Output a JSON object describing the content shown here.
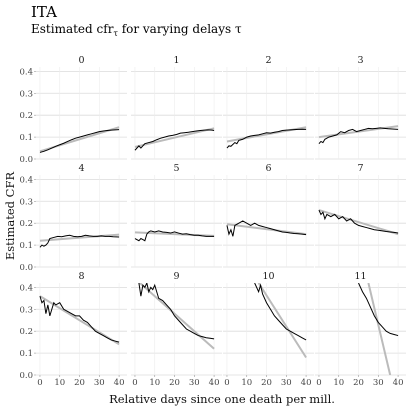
{
  "figure": {
    "title": "ITA",
    "subtitle": "Estimated cfr",
    "subtitle_sub": "τ",
    "subtitle_rest": " for varying delays τ"
  },
  "chart_data": {
    "type": "line",
    "xlabel": "Relative days since one death per mill.",
    "ylabel": "Estimated CFR",
    "xlim": [
      -2,
      44
    ],
    "ylim": [
      0,
      0.42
    ],
    "xticks": [
      0,
      10,
      20,
      30,
      40
    ],
    "yticks": [
      0.0,
      0.1,
      0.2,
      0.3,
      0.4
    ],
    "ytick_labels": [
      "0.0",
      "0.1",
      "0.2",
      "0.3",
      "0.4"
    ],
    "grid": true,
    "facet_layout": {
      "ncol": 4,
      "nrow": 3
    },
    "series_styles": {
      "estimate": "#000000",
      "fit": "#bbbbbb"
    },
    "panels": [
      {
        "label": "0",
        "estimate": {
          "x": [
            0,
            2,
            4,
            6,
            8,
            10,
            12,
            14,
            16,
            18,
            20,
            22,
            24,
            26,
            28,
            30,
            32,
            34,
            36,
            38,
            40
          ],
          "y": [
            0.03,
            0.035,
            0.042,
            0.05,
            0.058,
            0.065,
            0.072,
            0.08,
            0.088,
            0.095,
            0.1,
            0.105,
            0.11,
            0.115,
            0.12,
            0.125,
            0.128,
            0.13,
            0.132,
            0.133,
            0.134
          ]
        },
        "fit": {
          "x": [
            0,
            40
          ],
          "y": [
            0.035,
            0.145
          ]
        }
      },
      {
        "label": "1",
        "estimate": {
          "x": [
            0,
            2,
            3,
            5,
            7,
            9,
            11,
            13,
            15,
            17,
            19,
            21,
            23,
            25,
            27,
            29,
            31,
            33,
            35,
            37,
            39,
            40
          ],
          "y": [
            0.04,
            0.06,
            0.05,
            0.07,
            0.075,
            0.08,
            0.088,
            0.095,
            0.1,
            0.105,
            0.108,
            0.112,
            0.118,
            0.12,
            0.122,
            0.125,
            0.128,
            0.13,
            0.132,
            0.133,
            0.132,
            0.13
          ]
        },
        "fit": {
          "x": [
            0,
            40
          ],
          "y": [
            0.055,
            0.14
          ]
        }
      },
      {
        "label": "2",
        "estimate": {
          "x": [
            0,
            1,
            2,
            4,
            5,
            6,
            8,
            10,
            12,
            14,
            16,
            18,
            20,
            22,
            24,
            26,
            28,
            30,
            32,
            34,
            36,
            38,
            40
          ],
          "y": [
            0.05,
            0.06,
            0.058,
            0.075,
            0.07,
            0.085,
            0.09,
            0.1,
            0.105,
            0.108,
            0.11,
            0.115,
            0.12,
            0.118,
            0.122,
            0.125,
            0.13,
            0.132,
            0.133,
            0.134,
            0.135,
            0.136,
            0.135
          ]
        },
        "fit": {
          "x": [
            0,
            40
          ],
          "y": [
            0.08,
            0.145
          ]
        }
      },
      {
        "label": "3",
        "estimate": {
          "x": [
            0,
            1,
            2,
            3,
            5,
            7,
            9,
            11,
            13,
            15,
            17,
            19,
            21,
            23,
            25,
            27,
            29,
            31,
            33,
            35,
            37,
            40
          ],
          "y": [
            0.07,
            0.08,
            0.075,
            0.09,
            0.1,
            0.105,
            0.11,
            0.125,
            0.12,
            0.13,
            0.135,
            0.125,
            0.13,
            0.135,
            0.14,
            0.138,
            0.14,
            0.142,
            0.14,
            0.138,
            0.137,
            0.135
          ]
        },
        "fit": {
          "x": [
            0,
            40
          ],
          "y": [
            0.1,
            0.15
          ]
        }
      },
      {
        "label": "4",
        "estimate": {
          "x": [
            0,
            1,
            2,
            3,
            4,
            5,
            7,
            9,
            11,
            13,
            15,
            17,
            19,
            21,
            23,
            25,
            27,
            29,
            31,
            33,
            35,
            37,
            40
          ],
          "y": [
            0.09,
            0.1,
            0.095,
            0.1,
            0.11,
            0.13,
            0.135,
            0.14,
            0.138,
            0.142,
            0.145,
            0.14,
            0.138,
            0.14,
            0.145,
            0.142,
            0.14,
            0.14,
            0.142,
            0.14,
            0.14,
            0.138,
            0.137
          ]
        },
        "fit": {
          "x": [
            0,
            40
          ],
          "y": [
            0.12,
            0.148
          ]
        }
      },
      {
        "label": "5",
        "estimate": {
          "x": [
            0,
            2,
            3,
            4,
            5,
            6,
            7,
            8,
            10,
            12,
            14,
            16,
            18,
            20,
            22,
            24,
            26,
            28,
            30,
            32,
            34,
            36,
            38,
            40
          ],
          "y": [
            0.13,
            0.12,
            0.13,
            0.125,
            0.12,
            0.15,
            0.16,
            0.165,
            0.16,
            0.165,
            0.16,
            0.158,
            0.155,
            0.16,
            0.155,
            0.15,
            0.152,
            0.148,
            0.145,
            0.145,
            0.142,
            0.14,
            0.14,
            0.14
          ]
        },
        "fit": {
          "x": [
            0,
            40
          ],
          "y": [
            0.158,
            0.142
          ]
        }
      },
      {
        "label": "6",
        "estimate": {
          "x": [
            0,
            1,
            2,
            3,
            4,
            6,
            8,
            10,
            12,
            14,
            16,
            18,
            20,
            22,
            24,
            26,
            28,
            30,
            32,
            34,
            36,
            38,
            40
          ],
          "y": [
            0.19,
            0.15,
            0.17,
            0.14,
            0.19,
            0.2,
            0.21,
            0.2,
            0.19,
            0.2,
            0.19,
            0.185,
            0.18,
            0.175,
            0.17,
            0.165,
            0.16,
            0.158,
            0.155,
            0.153,
            0.152,
            0.15,
            0.148
          ]
        },
        "fit": {
          "x": [
            0,
            40
          ],
          "y": [
            0.195,
            0.15
          ]
        }
      },
      {
        "label": "7",
        "estimate": {
          "x": [
            0,
            1,
            2,
            3,
            4,
            6,
            8,
            10,
            12,
            14,
            16,
            18,
            20,
            22,
            24,
            26,
            28,
            30,
            32,
            34,
            36,
            38,
            40
          ],
          "y": [
            0.26,
            0.24,
            0.25,
            0.22,
            0.24,
            0.23,
            0.24,
            0.22,
            0.23,
            0.21,
            0.22,
            0.2,
            0.19,
            0.185,
            0.18,
            0.175,
            0.17,
            0.168,
            0.165,
            0.162,
            0.16,
            0.158,
            0.155
          ]
        },
        "fit": {
          "x": [
            0,
            40
          ],
          "y": [
            0.26,
            0.15
          ]
        }
      },
      {
        "label": "8",
        "estimate": {
          "x": [
            0,
            1,
            2,
            3,
            4,
            5,
            6,
            7,
            8,
            10,
            12,
            14,
            16,
            18,
            20,
            22,
            24,
            26,
            28,
            30,
            32,
            34,
            36,
            38,
            40
          ],
          "y": [
            0.36,
            0.33,
            0.34,
            0.28,
            0.32,
            0.27,
            0.3,
            0.33,
            0.32,
            0.33,
            0.3,
            0.29,
            0.28,
            0.27,
            0.27,
            0.25,
            0.24,
            0.22,
            0.2,
            0.19,
            0.18,
            0.17,
            0.16,
            0.155,
            0.15
          ]
        },
        "fit": {
          "x": [
            0,
            40
          ],
          "y": [
            0.36,
            0.14
          ]
        }
      },
      {
        "label": "9",
        "estimate": {
          "x": [
            2,
            3,
            4,
            5,
            6,
            7,
            8,
            9,
            10,
            12,
            14,
            16,
            18,
            20,
            22,
            24,
            26,
            28,
            30,
            32,
            34,
            36,
            38,
            40
          ],
          "y": [
            0.42,
            0.36,
            0.41,
            0.4,
            0.42,
            0.38,
            0.4,
            0.39,
            0.41,
            0.35,
            0.34,
            0.32,
            0.3,
            0.27,
            0.25,
            0.23,
            0.21,
            0.2,
            0.19,
            0.18,
            0.175,
            0.17,
            0.168,
            0.165
          ]
        },
        "fit": {
          "x": [
            0,
            40
          ],
          "y": [
            0.44,
            0.12
          ]
        }
      },
      {
        "label": "10",
        "estimate": {
          "x": [
            14,
            15,
            16,
            17,
            18,
            20,
            22,
            24,
            26,
            28,
            30,
            32,
            34,
            36,
            38,
            40
          ],
          "y": [
            0.42,
            0.4,
            0.38,
            0.41,
            0.37,
            0.33,
            0.3,
            0.27,
            0.25,
            0.23,
            0.21,
            0.2,
            0.19,
            0.18,
            0.17,
            0.16
          ]
        },
        "fit": {
          "x": [
            16,
            40
          ],
          "y": [
            0.42,
            0.08
          ]
        }
      },
      {
        "label": "11",
        "estimate": {
          "x": [
            20,
            22,
            24,
            26,
            28,
            30,
            32,
            34,
            36,
            38,
            40
          ],
          "y": [
            0.42,
            0.38,
            0.35,
            0.31,
            0.27,
            0.24,
            0.22,
            0.2,
            0.19,
            0.185,
            0.18
          ]
        },
        "fit": {
          "x": [
            25,
            36
          ],
          "y": [
            0.42,
            0.0
          ]
        }
      }
    ]
  }
}
